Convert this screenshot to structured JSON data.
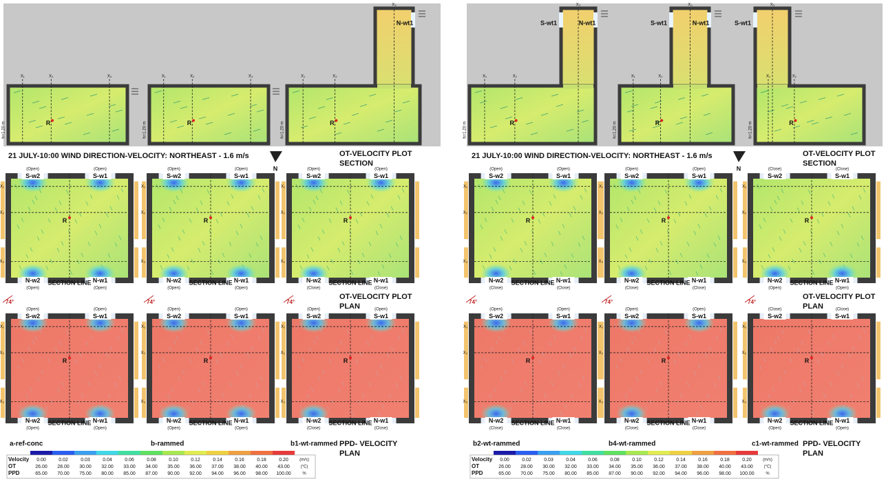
{
  "labels": {
    "sw2": "S-w2",
    "sw1": "S-w1",
    "nw2": "N-w2",
    "nw1": "N-w1",
    "section_line": "SECTION LINE",
    "r": "R",
    "height": "h=1.20 m",
    "angle": "74°",
    "north": "N",
    "x": [
      "X₁",
      "X₂",
      "X₃"
    ]
  },
  "halves": [
    {
      "caption": "21 JULY-10:00  WIND DIRECTION-VELOCITY: NORTHEAST - 1.6  m/s",
      "section_title": [
        "OT-VELOCITY PLOT",
        "SECTION"
      ],
      "ot_plan_title": [
        "OT-VELOCITY PLOT",
        "PLAN"
      ],
      "ppd_plan_title": [
        "PPD- VELOCITY",
        "PLAN"
      ],
      "cases": [
        {
          "name": "a-ref-conc",
          "tower_labels": [],
          "ot": [
            "(Open)",
            "(Open)",
            "(Open)",
            "(Open)"
          ],
          "ppd": [
            "(Open)",
            "(Open)",
            "(Open)",
            "(Open)"
          ]
        },
        {
          "name": "b-rammed",
          "tower_labels": [],
          "ot": [
            "(Open)",
            "(Open)",
            "(Open)",
            "(Open)"
          ],
          "ppd": [
            "(Open)",
            "(Open)",
            "(Open)",
            "(Open)"
          ]
        },
        {
          "name": "b1-wt-rammed",
          "tower_labels": [
            "N-wt1"
          ],
          "ot": [
            "(Open)",
            "(Open)",
            "(Close)",
            "(Close)"
          ],
          "ppd": [
            "(Open)",
            "(Open)",
            "(Close)",
            "(Close)"
          ]
        }
      ]
    },
    {
      "caption": "21 JULY-10:00  WIND DIRECTION-VELOCITY: NORTHEAST - 1.6  m/s",
      "section_title": [
        "OT-VELOCITY PLOT",
        "SECTION"
      ],
      "ot_plan_title": [
        "OT-VELOCITY PLOT",
        "PLAN"
      ],
      "ppd_plan_title": [
        "PPD- VELOCITY",
        "PLAN"
      ],
      "cases": [
        {
          "name": "b2-wt-rammed",
          "tower_labels": [
            "S-wt1",
            "N-wt1"
          ],
          "ot": [
            "(Open)",
            "(Open)",
            "(Close)",
            "(Close)"
          ],
          "ppd": [
            "(Open)",
            "(Open)",
            "(Close)",
            "(Close)"
          ]
        },
        {
          "name": "b4-wt-rammed",
          "tower_labels": [
            "S-wt1",
            "N-wt1"
          ],
          "ot": [
            "(Open)",
            "(Open)",
            "(Close)",
            "(Close)"
          ],
          "ppd": [
            "(Open)",
            "(Open)",
            "(Close)",
            "(Close)"
          ]
        },
        {
          "name": "c1-wt-rammed",
          "tower_labels": [
            "S-wt1"
          ],
          "ot": [
            "(Close)",
            "(Close)",
            "(Open)",
            "(Open)"
          ],
          "ppd": [
            "(Close)",
            "(Close)",
            "(Open)",
            "(Open)"
          ]
        }
      ]
    }
  ],
  "legend": {
    "colors": [
      "#1a1aa8",
      "#2a5ef0",
      "#3aa0f0",
      "#40d8e8",
      "#40e0a0",
      "#60e060",
      "#a8e850",
      "#e0ec50",
      "#f0d040",
      "#f0a040",
      "#f07040",
      "#e83a3a"
    ],
    "rows": [
      {
        "name": "Velocity",
        "values": [
          "0.00",
          "0.02",
          "0.03",
          "0.04",
          "0.06",
          "0.08",
          "0.10",
          "0.12",
          "0.14",
          "0.16",
          "0.18",
          "0.20"
        ],
        "unit": "(m/s)"
      },
      {
        "name": "OT",
        "values": [
          "26.00",
          "28.00",
          "30.00",
          "32.00",
          "33.00",
          "34.00",
          "35.00",
          "36.00",
          "37.00",
          "38.00",
          "40.00",
          "43.00"
        ],
        "unit": "(°C)"
      },
      {
        "name": "PPD",
        "values": [
          "65.00",
          "70.00",
          "75.00",
          "80.00",
          "85.00",
          "87.00",
          "90.00",
          "92.00",
          "94.00",
          "96.00",
          "98.00",
          "100.00"
        ],
        "unit": "%"
      }
    ]
  }
}
